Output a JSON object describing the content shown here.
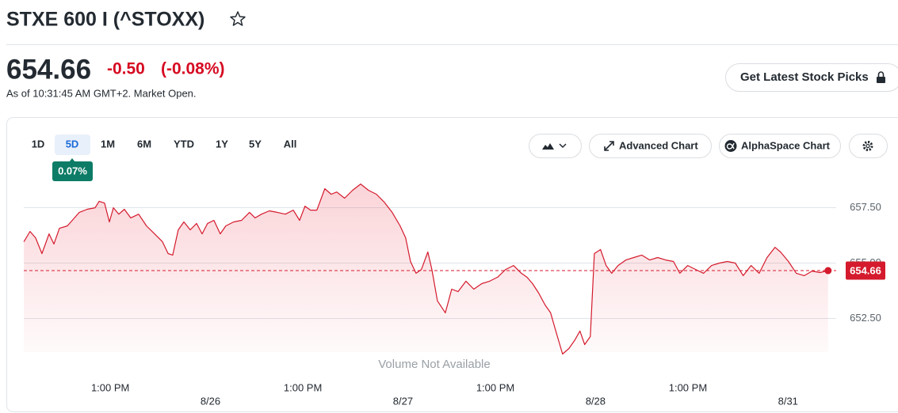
{
  "header": {
    "title": "STXE 600 I (^STOXX)"
  },
  "quote": {
    "price": "654.66",
    "change": "-0.50",
    "change_percent": "(-0.08%)",
    "as_of": "As of 10:31:45 AM GMT+2. Market Open."
  },
  "cta": {
    "label": "Get Latest Stock Picks"
  },
  "toolbar": {
    "ranges": [
      "1D",
      "5D",
      "1M",
      "6M",
      "YTD",
      "1Y",
      "5Y",
      "All"
    ],
    "range_badge": "0.07%",
    "advanced_chart": "Advanced Chart",
    "alphaspace_chart": "AlphaSpace Chart"
  },
  "chart_data": {
    "type": "line",
    "note": "Volume Not Available",
    "x": [
      0.021,
      0.053,
      0.082,
      0.115,
      0.152,
      0.177,
      0.206,
      0.247,
      0.309,
      0.35,
      0.391,
      0.412,
      0.44,
      0.465,
      0.486,
      0.514,
      0.543,
      0.576,
      0.617,
      0.658,
      0.7,
      0.741,
      0.77,
      0.794,
      0.823,
      0.852,
      0.885,
      0.918,
      0.947,
      0.975,
      1.008,
      1.041,
      1.07,
      1.111,
      1.152,
      1.193,
      1.222,
      1.255,
      1.296,
      1.337,
      1.379,
      1.42,
      1.453,
      1.481,
      1.51,
      1.543,
      1.584,
      1.617,
      1.646,
      1.687,
      1.728,
      1.77,
      1.811,
      1.852,
      1.893,
      1.934,
      1.975,
      2.004,
      2.029,
      2.058,
      2.086,
      2.119,
      2.14,
      2.169,
      2.21,
      2.243,
      2.276,
      2.317,
      2.358,
      2.399,
      2.44,
      2.481,
      2.523,
      2.564,
      2.605,
      2.634,
      2.663,
      2.695,
      2.728,
      2.757,
      2.786,
      2.819,
      2.852,
      2.881,
      2.909,
      2.934,
      2.963,
      2.984,
      3.016,
      3.045,
      3.074,
      3.107,
      3.148,
      3.189,
      3.23,
      3.272,
      3.313,
      3.354,
      3.395,
      3.428,
      3.469,
      3.51,
      3.551,
      3.593,
      3.634,
      3.675,
      3.716,
      3.757,
      3.798,
      3.84,
      3.881,
      3.922,
      3.951,
      3.992,
      4.033,
      4.074,
      4.115,
      4.156,
      4.198
    ],
    "series": [
      {
        "color": "#d41a2c",
        "values": [
          655.96,
          656.43,
          656.14,
          655.43,
          656.32,
          655.86,
          656.57,
          656.68,
          657.29,
          657.43,
          657.5,
          657.79,
          657.71,
          656.86,
          657.5,
          657.21,
          657.43,
          657.04,
          657.21,
          656.68,
          656.32,
          655.96,
          655.43,
          655.36,
          656.5,
          656.86,
          656.5,
          656.79,
          656.32,
          656.79,
          656.93,
          656.32,
          656.68,
          656.86,
          656.93,
          657.29,
          657.04,
          657.21,
          657.36,
          657.29,
          657.21,
          657.39,
          656.93,
          657.57,
          657.39,
          657.39,
          658.36,
          658.11,
          658.21,
          657.93,
          658.29,
          658.57,
          658.29,
          658.11,
          657.75,
          657.29,
          656.68,
          656.14,
          655.07,
          654.54,
          654.71,
          655.5,
          654.71,
          653.29,
          652.75,
          653.82,
          653.71,
          654.18,
          653.82,
          654.07,
          654.18,
          654.36,
          654.71,
          654.89,
          654.54,
          654.36,
          654.07,
          653.64,
          653.11,
          652.75,
          651.86,
          650.89,
          651.14,
          651.5,
          651.93,
          651.32,
          651.68,
          655.43,
          655.61,
          654.89,
          654.54,
          654.89,
          655.14,
          655.25,
          655.36,
          655.14,
          655.25,
          655.14,
          655.07,
          654.54,
          654.89,
          654.71,
          654.54,
          654.89,
          655.0,
          655.07,
          655.0,
          654.43,
          654.89,
          654.54,
          655.25,
          655.71,
          655.5,
          655.07,
          654.54,
          654.43,
          654.64,
          654.57,
          654.66
        ]
      }
    ],
    "current_value": 654.66,
    "xlim": [
      0,
      4.24
    ],
    "ylim": [
      650.8,
      659.2
    ],
    "yticks": [
      {
        "value": 652.5,
        "label": "652.50"
      },
      {
        "value": 655,
        "label": "655.00"
      },
      {
        "value": 657.5,
        "label": "657.50"
      }
    ],
    "xticks": [
      {
        "value": 0.99,
        "label": "8/26"
      },
      {
        "value": 1.99,
        "label": "8/27"
      },
      {
        "value": 2.99,
        "label": "8/28"
      },
      {
        "value": 3.99,
        "label": "8/31"
      }
    ],
    "xticks_secondary": [
      {
        "value": 0.47,
        "label": "1:00 PM"
      },
      {
        "value": 1.47,
        "label": "1:00 PM"
      },
      {
        "value": 2.47,
        "label": "1:00 PM"
      },
      {
        "value": 3.47,
        "label": "1:00 PM"
      }
    ],
    "grid": true
  }
}
